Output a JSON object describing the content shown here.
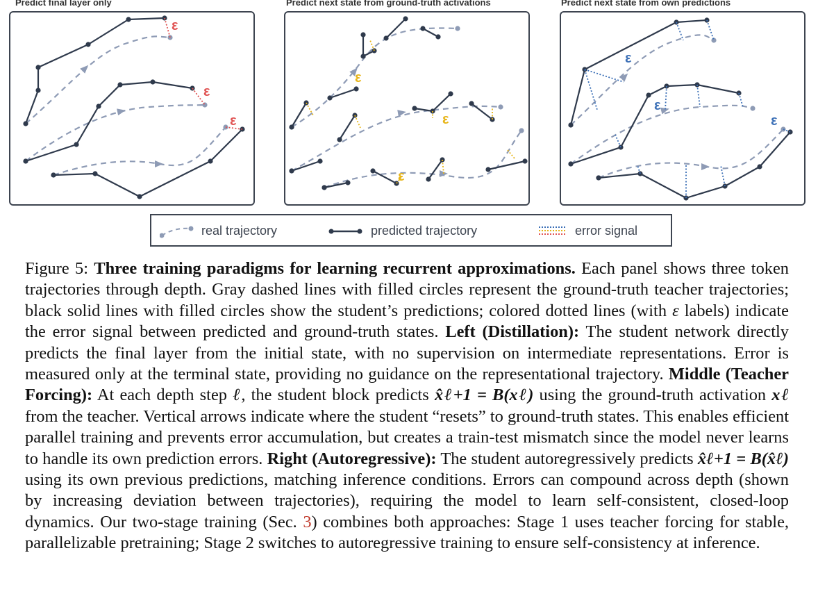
{
  "panels": [
    {
      "title": "Predict final layer only",
      "mode": "final",
      "eps_labels": [
        "ε",
        "ε",
        "ε"
      ]
    },
    {
      "title": "Predict next state from ground-truth activations",
      "mode": "teacher",
      "eps_labels": [
        "ε",
        "ε",
        "ε"
      ]
    },
    {
      "title": "Predict next state from own predictions",
      "mode": "auto",
      "eps_labels": [
        "ε",
        "ε",
        "ε"
      ]
    }
  ],
  "legend": {
    "real": "real trajectory",
    "predicted": "predicted trajectory",
    "error": "error signal"
  },
  "colors": {
    "real": "#8e9bb5",
    "predicted": "#2f3a4c",
    "error_red": "#e05252",
    "error_yellow": "#e7b416",
    "error_blue": "#3b6fb6",
    "frame": "#3d4450"
  },
  "caption": {
    "figure_label": "Figure 5:",
    "title": "Three training paradigms for learning recurrent approximations.",
    "intro": "Each panel shows three token trajectories through depth. Gray dashed lines with filled circles represent the ground-truth teacher trajectories; black solid lines with filled circles show the student’s predictions; colored dotted lines (with",
    "eps_symbol": "ε",
    "intro_end": "labels) indicate the error signal between predicted and ground-truth states.",
    "left_head": "Left (Distillation):",
    "left_text": "The student network directly predicts the final layer from the initial state, with no supervision on intermediate representations. Error is measured only at the terminal state, providing no guidance on the representational trajectory.",
    "middle_head": "Middle (Teacher Forcing):",
    "middle_text_1": "At each depth step",
    "ell": "ℓ",
    "middle_text_2": ", the student block predicts",
    "middle_eq": "x̂ℓ+1 = B(xℓ)",
    "middle_text_3": "using the ground-truth activation",
    "middle_var": "xℓ",
    "middle_text_4": "from the teacher. Vertical arrows indicate where the student “resets” to ground-truth states. This enables efficient parallel training and prevents error accumulation, but creates a train-test mismatch since the model never learns to handle its own prediction errors.",
    "right_head": "Right (Autoregressive):",
    "right_text_1": "The student autoregressively predicts",
    "right_eq": "x̂ℓ+1 = B(x̂ℓ)",
    "right_text_2": "using its own previous predictions, matching inference conditions. Errors can compound across depth (shown by increasing deviation between trajectories), requiring the model to learn self-consistent, closed-loop dynamics. Our two-stage training (Sec.",
    "sec_ref": "3",
    "right_text_3": ") combines both approaches: Stage 1 uses teacher forcing for stable, parallelizable pretraining; Stage 2 switches to autoregressive training to ensure self-consistency at inference."
  }
}
